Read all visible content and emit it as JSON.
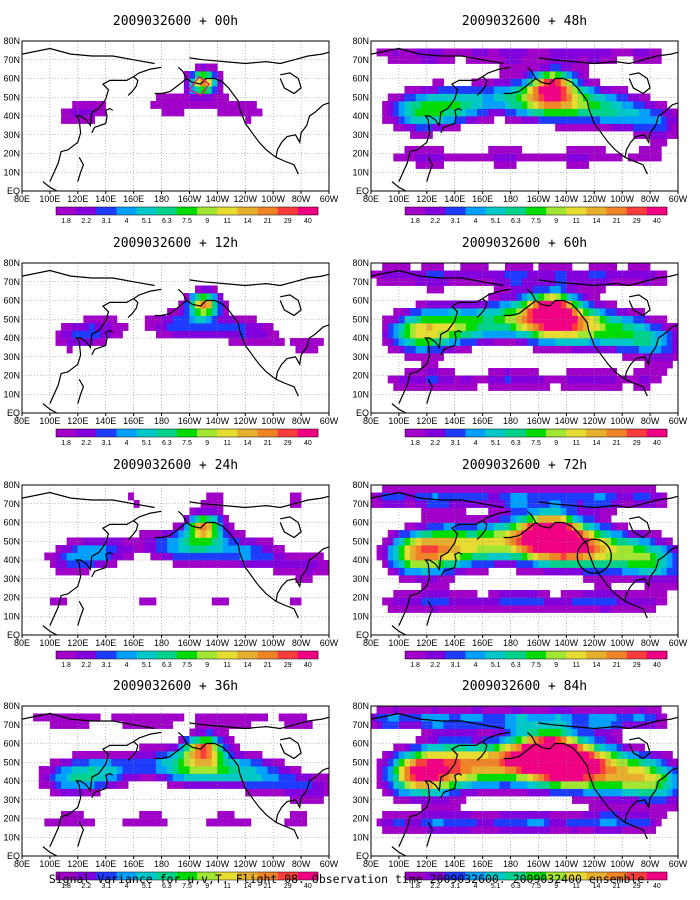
{
  "caption": "Signal Variance for u,v,T. Flight 08. Observation time 2009032600. 2009032400 ensemble.",
  "colors": [
    "#a000c8",
    "#8200dc",
    "#1e3cff",
    "#00a0ff",
    "#00c8c8",
    "#00d28c",
    "#00dc00",
    "#a0e632",
    "#e6dc32",
    "#e6af2d",
    "#f08228",
    "#fa3c3c",
    "#f00082"
  ],
  "chart_data": {
    "type": "heatmap",
    "colorbar": {
      "labels": [
        "1.8",
        "2.2",
        "3.1",
        "4",
        "5.1",
        "6.3",
        "7.5",
        "9",
        "11",
        "14",
        "21",
        "29",
        "40"
      ]
    },
    "x_ticks": [
      "80E",
      "100E",
      "120E",
      "140E",
      "160E",
      "180",
      "160W",
      "140W",
      "120W",
      "100W",
      "80W",
      "60W"
    ],
    "y_ticks": [
      "EQ",
      "10N",
      "20N",
      "30N",
      "40N",
      "50N",
      "60N",
      "70N",
      "80N"
    ],
    "xlim": [
      "80E",
      "60W"
    ],
    "ylim": [
      "EQ",
      "80N"
    ],
    "panels": [
      {
        "title": "2009032600 + 00h",
        "lead_h": 0
      },
      {
        "title": "2009032600 + 12h",
        "lead_h": 12
      },
      {
        "title": "2009032600 + 24h",
        "lead_h": 24
      },
      {
        "title": "2009032600 + 36h",
        "lead_h": 36
      },
      {
        "title": "2009032600 + 48h",
        "lead_h": 48
      },
      {
        "title": "2009032600 + 60h",
        "lead_h": 60
      },
      {
        "title": "2009032600 + 72h",
        "lead_h": 72
      },
      {
        "title": "2009032600 + 84h",
        "lead_h": 84
      }
    ]
  }
}
